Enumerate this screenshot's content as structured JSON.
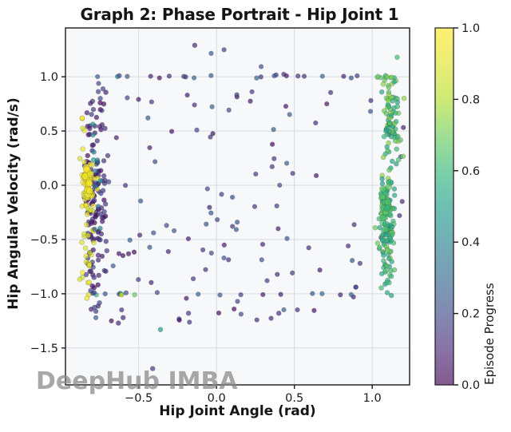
{
  "watermark": "DeepHub IMBA",
  "chart_data": {
    "type": "scatter",
    "title": "Graph 2: Phase Portrait - Hip Joint 1",
    "xlabel": "Hip Joint Angle (rad)",
    "ylabel": "Hip Angular Velocity (rad/s)",
    "xlim": [
      -0.97,
      1.24
    ],
    "ylim": [
      -1.84,
      1.45
    ],
    "xticks": [
      -0.5,
      0.0,
      0.5,
      1.0
    ],
    "xtick_labels": [
      "−0.5",
      "0.0",
      "0.5",
      "1.0"
    ],
    "yticks": [
      1.0,
      0.5,
      0.0,
      -0.5,
      -1.0,
      -1.5
    ],
    "ytick_labels": [
      "1.0",
      "0.5",
      "0.0",
      "−0.5",
      "−1.0",
      "−1.5"
    ],
    "grid": true,
    "legend": "none",
    "colorbar": {
      "label": "Episode Progress",
      "ticks": [
        0.0,
        0.2,
        0.4,
        0.6,
        0.8,
        1.0
      ],
      "tick_labels": [
        "0.0",
        "0.2",
        "0.4",
        "0.6",
        "0.8",
        "1.0"
      ],
      "colormap": "viridis",
      "alpha": 0.65
    },
    "style": {
      "plot_bg": "#f7f8f9",
      "grid_color": "#d9dbe2",
      "spine_color": "#1a1a1a",
      "text_color": "#1a1a1a",
      "watermark_color": "rgba(135,135,135,0.72)",
      "marker_alpha": 0.7,
      "marker_edge": "rgba(40,40,60,0.28)"
    },
    "clusters": [
      {
        "name": "sparse-background",
        "count": 125,
        "x": {
          "dist": "uniform",
          "min": -0.9,
          "max": 1.2
        },
        "y": {
          "dist": "uniform",
          "min": -1.3,
          "max": 1.28
        },
        "progress": [
          0.02,
          0.28
        ],
        "radius": 2.9
      },
      {
        "name": "band-top-dark",
        "count": 20,
        "x": {
          "dist": "uniform",
          "min": -0.78,
          "max": 0.98
        },
        "y": {
          "dist": "const",
          "value": 1.0,
          "jitter": 0.012
        },
        "progress": [
          0.05,
          0.3
        ],
        "radius": 2.9
      },
      {
        "name": "band-top-green",
        "count": 8,
        "x": {
          "dist": "uniform",
          "min": 1.03,
          "max": 1.17
        },
        "y": {
          "dist": "const",
          "value": 1.0,
          "jitter": 0.012
        },
        "progress": [
          0.55,
          0.72
        ],
        "radius": 2.9
      },
      {
        "name": "band-bottom-dark",
        "count": 10,
        "x": {
          "dist": "uniform",
          "min": -0.6,
          "max": 1.0
        },
        "y": {
          "dist": "const",
          "value": -1.0,
          "jitter": 0.012
        },
        "progress": [
          0.05,
          0.3
        ],
        "radius": 2.9
      },
      {
        "name": "band-bottom-left-mixed",
        "count": 8,
        "x": {
          "dist": "uniform",
          "min": -0.87,
          "max": -0.5
        },
        "y": {
          "dist": "const",
          "value": -1.0,
          "jitter": 0.012
        },
        "progress": [
          0.1,
          0.95
        ],
        "radius": 2.9
      },
      {
        "name": "left-column-early-episode",
        "count": 145,
        "x": {
          "dist": "normal",
          "mean": -0.78,
          "std": 0.038,
          "min": -0.89,
          "max": -0.66
        },
        "y": {
          "dist": "normal",
          "mean": -0.15,
          "std": 0.52,
          "min": -1.26,
          "max": 0.97
        },
        "progress": [
          0.02,
          0.2
        ],
        "radius": 3.0
      },
      {
        "name": "left-column-late-episode",
        "count": 60,
        "x": {
          "dist": "normal",
          "mean": -0.83,
          "std": 0.02,
          "min": -0.89,
          "max": -0.75
        },
        "y": {
          "dist": "normal",
          "mean": -0.15,
          "std": 0.45,
          "min": -1.05,
          "max": 0.62
        },
        "progress": [
          0.85,
          1.0
        ],
        "radius": 3.0
      },
      {
        "name": "left-column-mid-episode",
        "count": 12,
        "x": {
          "dist": "normal",
          "mean": -0.78,
          "std": 0.03,
          "min": -0.88,
          "max": -0.68
        },
        "y": {
          "dist": "normal",
          "mean": 0.0,
          "std": 0.5,
          "min": -1.0,
          "max": 0.8
        },
        "progress": [
          0.3,
          0.55
        ],
        "radius": 3.0
      },
      {
        "name": "right-column-upper",
        "count": 85,
        "x": {
          "dist": "normal",
          "mean": 1.12,
          "std": 0.028,
          "min": 1.03,
          "max": 1.21
        },
        "y": {
          "dist": "normal",
          "mean": 0.6,
          "std": 0.25,
          "min": 0.05,
          "max": 1.0
        },
        "progress": [
          0.52,
          0.78
        ],
        "radius": 3.0
      },
      {
        "name": "right-column-lower",
        "count": 110,
        "x": {
          "dist": "normal",
          "mean": 1.09,
          "std": 0.028,
          "min": 1.0,
          "max": 1.19
        },
        "y": {
          "dist": "normal",
          "mean": -0.35,
          "std": 0.33,
          "min": -1.06,
          "max": 0.1
        },
        "progress": [
          0.5,
          0.75
        ],
        "radius": 3.0
      },
      {
        "name": "right-dense-blob",
        "count": 28,
        "x": {
          "dist": "normal",
          "mean": 1.085,
          "std": 0.012,
          "min": 1.05,
          "max": 1.12
        },
        "y": {
          "dist": "normal",
          "mean": -0.18,
          "std": 0.1,
          "min": -0.45,
          "max": 0.05
        },
        "progress": [
          0.58,
          0.68
        ],
        "radius": 4.0
      },
      {
        "name": "left-dense-yellow-blob",
        "count": 22,
        "x": {
          "dist": "normal",
          "mean": -0.825,
          "std": 0.01,
          "min": -0.86,
          "max": -0.79
        },
        "y": {
          "dist": "normal",
          "mean": 0.04,
          "std": 0.06,
          "min": -0.12,
          "max": 0.2
        },
        "progress": [
          0.93,
          1.0
        ],
        "radius": 4.2
      }
    ],
    "outlier_points": [
      {
        "x": -0.14,
        "y": 1.29,
        "progress": 0.1
      },
      {
        "x": 1.16,
        "y": 1.18,
        "progress": 0.62
      },
      {
        "x": -0.41,
        "y": -1.69,
        "progress": 0.15
      },
      {
        "x": -0.36,
        "y": -1.33,
        "progress": 0.5
      },
      {
        "x": -0.63,
        "y": -1.27,
        "progress": 0.1
      },
      {
        "x": -0.6,
        "y": -1.22,
        "progress": 0.1
      },
      {
        "x": 0.4,
        "y": -1.18,
        "progress": 0.12
      },
      {
        "x": -0.18,
        "y": -1.18,
        "progress": 0.15
      }
    ]
  }
}
